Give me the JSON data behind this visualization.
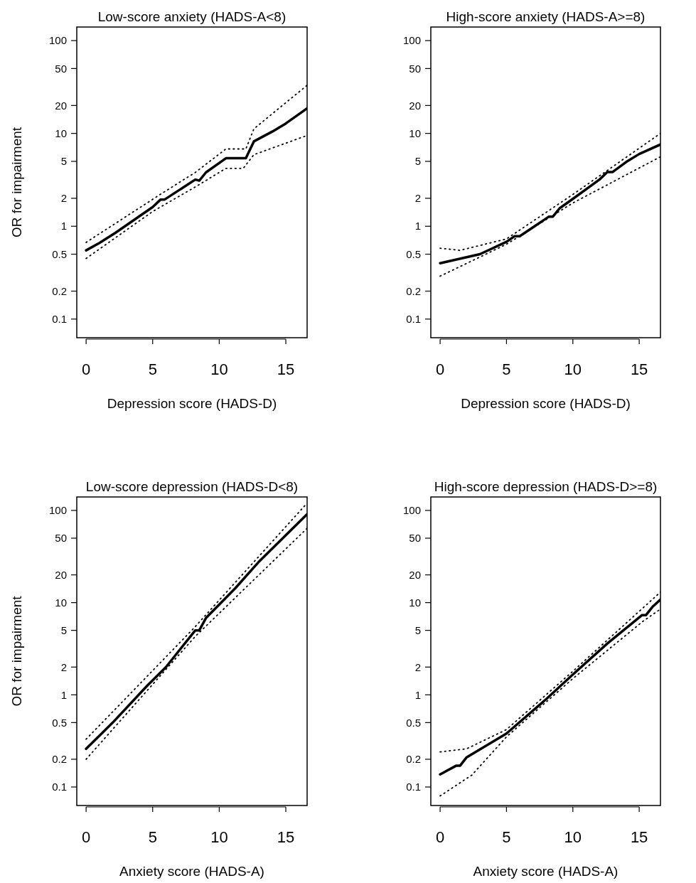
{
  "chart_data": [
    {
      "type": "line",
      "title": "Low-score anxiety (HADS-A<8)",
      "xlabel": "Depression score (HADS-D)",
      "ylabel": "OR for impairment",
      "log": "y",
      "xlim": [
        -0.7,
        16.6
      ],
      "ylim": [
        0.063,
        140
      ],
      "xticks": [
        0,
        5,
        10,
        15
      ],
      "yticks": [
        0.1,
        0.2,
        0.5,
        1,
        2,
        5,
        10,
        20,
        50,
        100
      ],
      "series": [
        {
          "color": "#000000",
          "line_style": "solid",
          "x": [
            0,
            1,
            2.2,
            5,
            5.6,
            5.9,
            8.2,
            8.5,
            9,
            10.5,
            12,
            12.6,
            14,
            15,
            16.6
          ],
          "values": [
            0.55,
            0.66,
            0.85,
            1.61,
            1.94,
            1.94,
            3.18,
            3.1,
            3.8,
            5.4,
            5.4,
            8.2,
            10.5,
            12.8,
            18.6
          ]
        },
        {
          "color": "#000000",
          "line_style": "dotted",
          "x": [
            0,
            5.5,
            8.2,
            10.5,
            12,
            12.6,
            16.6
          ],
          "values": [
            0.67,
            2.17,
            3.8,
            6.8,
            6.8,
            11.2,
            33
          ]
        },
        {
          "color": "#000000",
          "line_style": "dotted",
          "x": [
            0,
            5,
            8.2,
            10.5,
            11.8,
            12.6,
            16.6
          ],
          "values": [
            0.45,
            1.44,
            2.65,
            4.2,
            4.2,
            5.9,
            9.5
          ]
        }
      ]
    },
    {
      "type": "line",
      "title": "High-score anxiety (HADS-A>=8)",
      "xlabel": "Depression score (HADS-D)",
      "log": "y",
      "xlim": [
        -0.7,
        16.6
      ],
      "ylim": [
        0.063,
        140
      ],
      "xticks": [
        0,
        5,
        10,
        15
      ],
      "yticks": [
        0.1,
        0.2,
        0.5,
        1,
        2,
        5,
        10,
        20,
        50,
        100
      ],
      "series": [
        {
          "color": "#000000",
          "line_style": "solid",
          "x": [
            0,
            3,
            5,
            5.6,
            6,
            8.2,
            8.5,
            9,
            10,
            12,
            12.6,
            13,
            14,
            15,
            16.6
          ],
          "values": [
            0.4,
            0.5,
            0.68,
            0.78,
            0.78,
            1.27,
            1.27,
            1.56,
            1.97,
            3.18,
            3.84,
            3.84,
            4.9,
            6.0,
            7.6
          ]
        },
        {
          "color": "#000000",
          "line_style": "dotted",
          "x": [
            0,
            1.5,
            5,
            10,
            16.6
          ],
          "values": [
            0.58,
            0.55,
            0.73,
            2.2,
            10
          ]
        },
        {
          "color": "#000000",
          "line_style": "dotted",
          "x": [
            0,
            5,
            10,
            16.6
          ],
          "values": [
            0.29,
            0.64,
            1.78,
            5.6
          ]
        }
      ]
    },
    {
      "type": "line",
      "title": "Low-score depression (HADS-D<8)",
      "xlabel": "Anxiety score (HADS-A)",
      "ylabel": "OR for impairment",
      "log": "y",
      "xlim": [
        -0.7,
        16.6
      ],
      "ylim": [
        0.063,
        140
      ],
      "xticks": [
        0,
        5,
        10,
        15
      ],
      "yticks": [
        0.1,
        0.2,
        0.5,
        1,
        2,
        5,
        10,
        20,
        50,
        100
      ],
      "series": [
        {
          "color": "#000000",
          "line_style": "solid",
          "x": [
            0,
            2,
            4.6,
            6,
            8.2,
            8.5,
            9,
            11.2,
            13,
            16.6
          ],
          "values": [
            0.26,
            0.5,
            1.26,
            2.0,
            5.0,
            5.0,
            6.8,
            14.3,
            28,
            91
          ]
        },
        {
          "color": "#000000",
          "line_style": "dotted",
          "x": [
            0,
            8.1,
            16.6
          ],
          "values": [
            0.33,
            5.3,
            120
          ]
        },
        {
          "color": "#000000",
          "line_style": "dotted",
          "x": [
            0,
            8.2,
            16.6
          ],
          "values": [
            0.2,
            4.3,
            64
          ]
        }
      ]
    },
    {
      "type": "line",
      "title": "High-score depression (HADS-D>=8)",
      "xlabel": "Anxiety score (HADS-A)",
      "log": "y",
      "xlim": [
        -0.7,
        16.6
      ],
      "ylim": [
        0.063,
        140
      ],
      "xticks": [
        0,
        5,
        10,
        15
      ],
      "yticks": [
        0.1,
        0.2,
        0.5,
        1,
        2,
        5,
        10,
        20,
        50,
        100
      ],
      "series": [
        {
          "color": "#000000",
          "line_style": "solid",
          "x": [
            0,
            1.2,
            1.5,
            2,
            5,
            8,
            10,
            12.6,
            15.2,
            15.5,
            16,
            16.6
          ],
          "values": [
            0.137,
            0.17,
            0.17,
            0.21,
            0.38,
            0.9,
            1.66,
            3.6,
            7.3,
            7.3,
            9.0,
            10.8
          ]
        },
        {
          "color": "#000000",
          "line_style": "dotted",
          "x": [
            0,
            2,
            5,
            10,
            16.6
          ],
          "values": [
            0.24,
            0.26,
            0.42,
            1.8,
            13
          ]
        },
        {
          "color": "#000000",
          "line_style": "dotted",
          "x": [
            0,
            2.4,
            5,
            10,
            15.3,
            16.6
          ],
          "values": [
            0.08,
            0.135,
            0.35,
            1.5,
            6.3,
            8.5
          ]
        }
      ]
    }
  ]
}
